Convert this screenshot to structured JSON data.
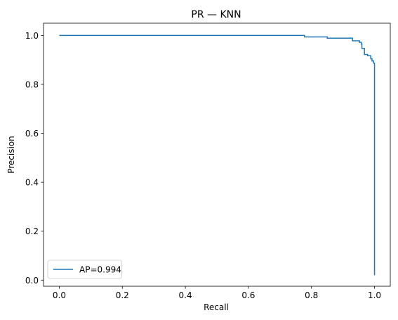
{
  "chart_data": {
    "type": "line",
    "title": "PR — KNN",
    "xlabel": "Recall",
    "ylabel": "Precision",
    "xlim": [
      -0.05,
      1.05
    ],
    "ylim": [
      -0.025,
      1.05
    ],
    "xticks": [
      0.0,
      0.2,
      0.4,
      0.6,
      0.8,
      1.0
    ],
    "xtick_labels": [
      "0.0",
      "0.2",
      "0.4",
      "0.6",
      "0.8",
      "1.0"
    ],
    "yticks": [
      0.0,
      0.2,
      0.4,
      0.6,
      0.8,
      1.0
    ],
    "ytick_labels": [
      "0.0",
      "0.2",
      "0.4",
      "0.6",
      "0.8",
      "1.0"
    ],
    "grid": false,
    "legend_position": "lower-left",
    "series": [
      {
        "name": "AP=0.994",
        "color": "#1f77b4",
        "drawstyle": "steps",
        "points": [
          [
            0.0,
            1.0
          ],
          [
            0.778,
            1.0
          ],
          [
            0.778,
            0.994
          ],
          [
            0.85,
            0.994
          ],
          [
            0.85,
            0.989
          ],
          [
            0.93,
            0.989
          ],
          [
            0.93,
            0.978
          ],
          [
            0.952,
            0.978
          ],
          [
            0.952,
            0.972
          ],
          [
            0.958,
            0.972
          ],
          [
            0.958,
            0.965
          ],
          [
            0.96,
            0.965
          ],
          [
            0.96,
            0.947
          ],
          [
            0.968,
            0.947
          ],
          [
            0.968,
            0.922
          ],
          [
            0.978,
            0.922
          ],
          [
            0.978,
            0.917
          ],
          [
            0.988,
            0.917
          ],
          [
            0.988,
            0.905
          ],
          [
            0.992,
            0.905
          ],
          [
            0.992,
            0.896
          ],
          [
            0.997,
            0.896
          ],
          [
            0.997,
            0.887
          ],
          [
            1.0,
            0.887
          ],
          [
            1.0,
            0.02
          ]
        ]
      }
    ]
  }
}
